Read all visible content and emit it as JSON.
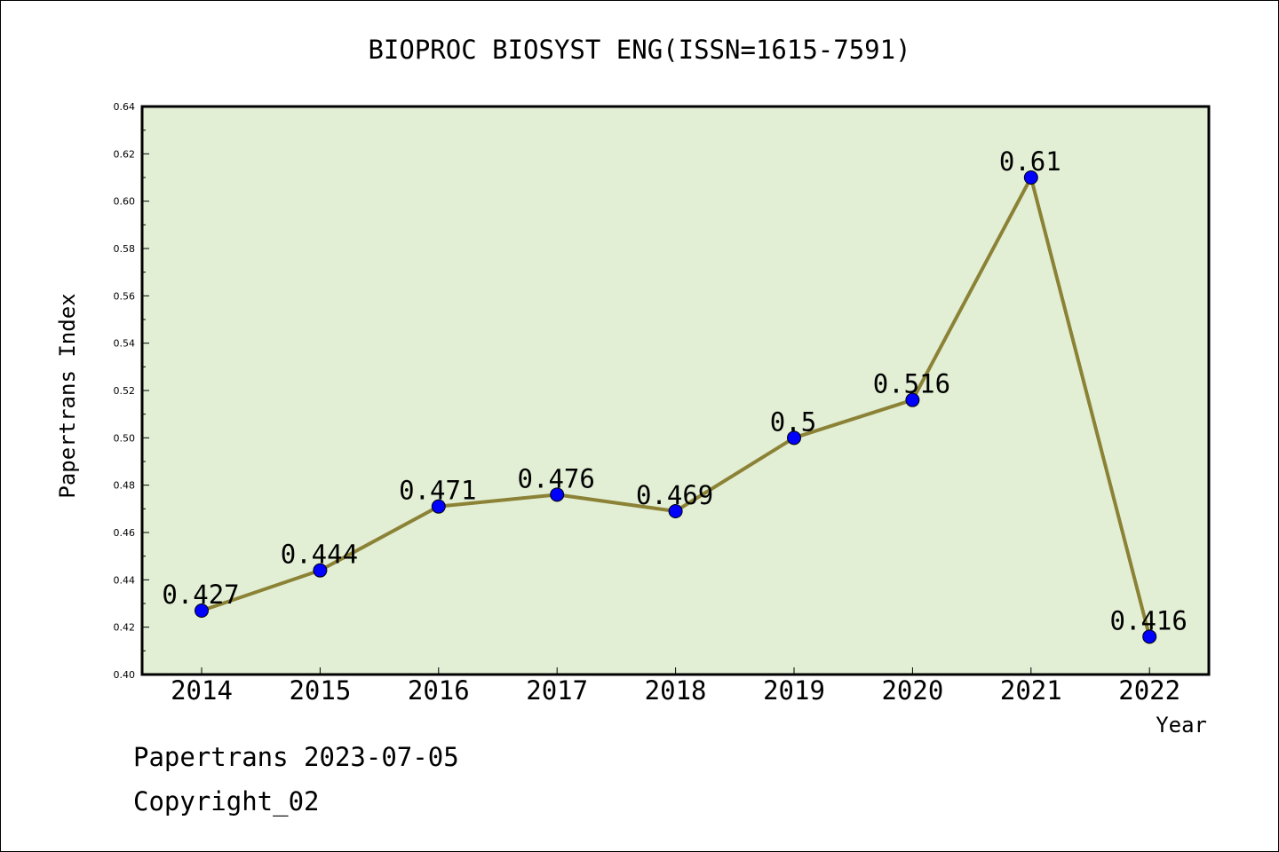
{
  "chart_data": {
    "type": "line",
    "title": "BIOPROC BIOSYST ENG(ISSN=1615-7591)",
    "xlabel": "Year",
    "ylabel": "Papertrans Index",
    "categories": [
      "2014",
      "2015",
      "2016",
      "2017",
      "2018",
      "2019",
      "2020",
      "2021",
      "2022"
    ],
    "series": [
      {
        "values": [
          0.427,
          0.444,
          0.471,
          0.476,
          0.469,
          0.5,
          0.516,
          0.61,
          0.416
        ],
        "point_labels": [
          "0.427",
          "0.444",
          "0.471",
          "0.476",
          "0.469",
          "0.5",
          "0.516",
          "0.61",
          "0.416"
        ],
        "line_color": "#8b8236",
        "marker_color": "#0000ff"
      }
    ],
    "ylim": [
      0.4,
      0.64
    ],
    "yticks": [
      "0.40",
      "0.42",
      "0.44",
      "0.46",
      "0.48",
      "0.50",
      "0.52",
      "0.54",
      "0.56",
      "0.58",
      "0.60",
      "0.62",
      "0.64"
    ],
    "plot_background": "#e2efd5",
    "grid": false,
    "legend": "none"
  },
  "footer": {
    "line1": "Papertrans 2023-07-05",
    "line2": "Copyright_02"
  }
}
